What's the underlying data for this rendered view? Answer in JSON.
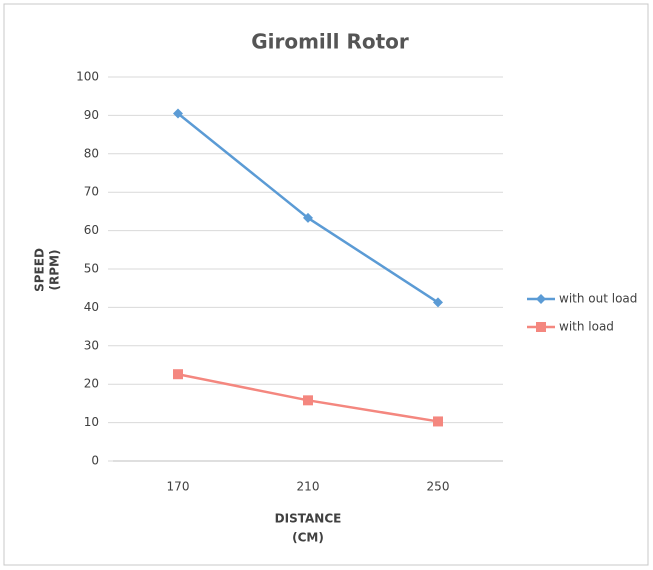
{
  "chart_data": {
    "type": "line",
    "title": "Giromill Rotor",
    "x_label": [
      "DISTANCE",
      "(CM)"
    ],
    "y_label": [
      "SPEED",
      "(RPM)"
    ],
    "categories": [
      "170",
      "210",
      "250"
    ],
    "series": [
      {
        "name": "with out load",
        "color": "#5b9bd5",
        "marker": "diamond",
        "values": [
          90.5,
          63.3,
          41.3
        ]
      },
      {
        "name": "with load",
        "color": "#f4877f",
        "marker": "square",
        "values": [
          22.6,
          15.8,
          10.3
        ]
      }
    ],
    "ylim": [
      0,
      100
    ],
    "yticks": [
      0,
      10,
      20,
      30,
      40,
      50,
      60,
      70,
      80,
      90,
      100
    ],
    "grid": true,
    "legend": "right"
  }
}
